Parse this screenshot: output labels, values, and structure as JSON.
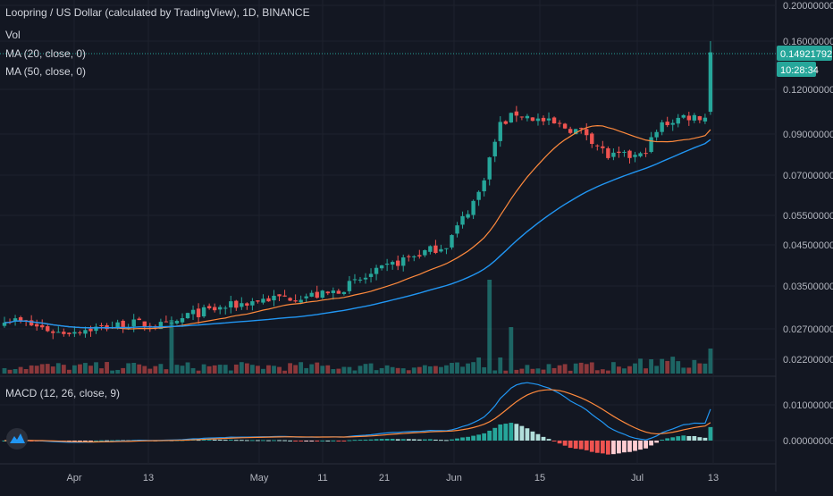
{
  "header": {
    "symbol_title": "Loopring / US Dollar (calculated by TradingView), 1D, BINANCE",
    "vol_label": "Vol",
    "ma20_label": "MA (20, close, 0)",
    "ma50_label": "MA (50, close, 0)",
    "macd_label": "MACD (12, 26, close, 9)"
  },
  "price_badge": {
    "last_price": "0.14921792",
    "countdown": "10:28:34"
  },
  "colors": {
    "background": "#131722",
    "up": "#26a69a",
    "down": "#ef5350",
    "ma20": "#ff8a3d",
    "ma50": "#2196f3",
    "macd_line": "#2196f3",
    "signal_line": "#ff8a3d",
    "axis_text": "#b2b5be",
    "price_line": "#26a69a"
  },
  "chart_data": {
    "type": "candlestick",
    "title": "Loopring / US Dollar (calculated by TradingView), 1D, BINANCE",
    "y_scale": "log",
    "price_axis_labels": [
      "0.20000000",
      "0.16000000",
      "0.12000000",
      "0.09000000",
      "0.07000000",
      "0.05500000",
      "0.04500000",
      "0.03500000",
      "0.02700000",
      "0.02200000"
    ],
    "x_axis_labels": [
      "Apr",
      "13",
      "May",
      "11",
      "21",
      "Jun",
      "15",
      "Jul",
      "13"
    ],
    "macd_axis_labels": [
      "0.01000000",
      "0.00000000"
    ],
    "last_price": 0.14921792,
    "series": [
      {
        "name": "MA (20, close, 0)"
      },
      {
        "name": "MA (50, close, 0)"
      },
      {
        "name": "MACD (12, 26, close, 9)"
      }
    ]
  }
}
